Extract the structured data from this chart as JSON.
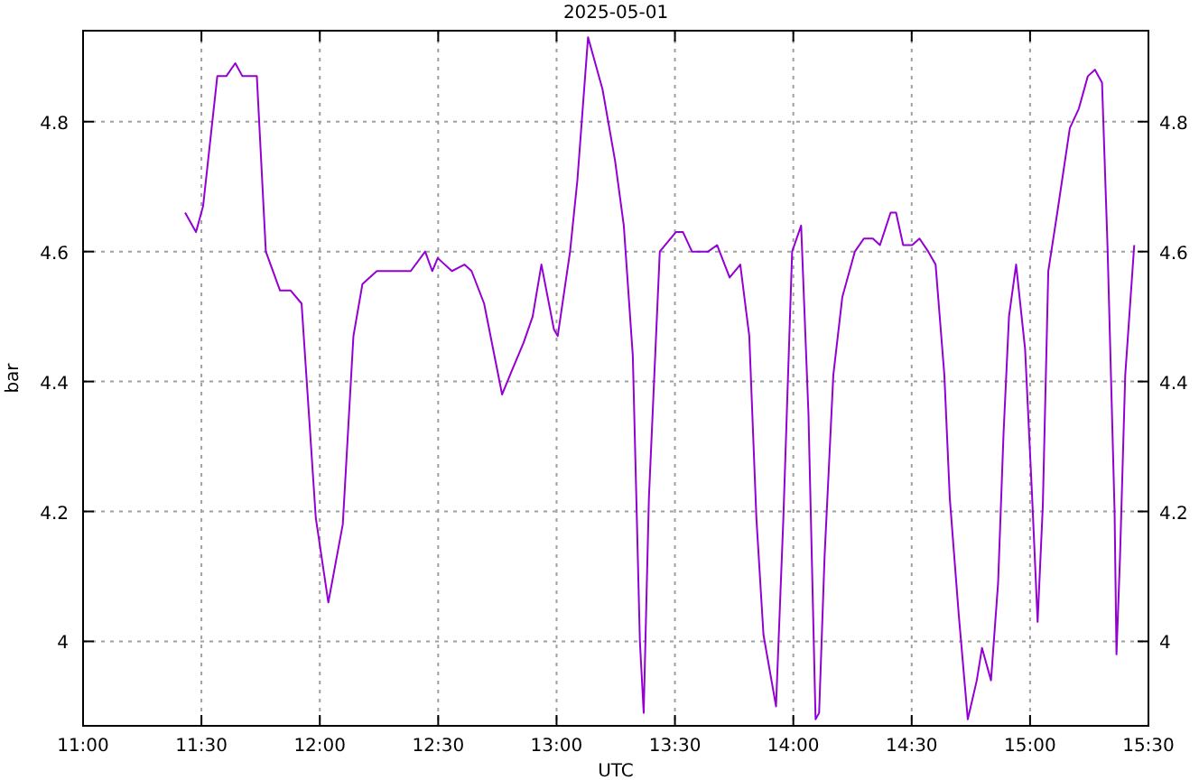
{
  "chart_data": {
    "type": "line",
    "title": "2025-05-01",
    "xlabel": "UTC",
    "ylabel": "bar",
    "xlim": [
      11,
      15.5
    ],
    "xticks": [
      {
        "value": 11,
        "label": "11:00"
      },
      {
        "value": 11.5,
        "label": "11:30"
      },
      {
        "value": 12,
        "label": "12:00"
      },
      {
        "value": 12.5,
        "label": "12:30"
      },
      {
        "value": 13,
        "label": "13:00"
      },
      {
        "value": 13.5,
        "label": "13:30"
      },
      {
        "value": 14,
        "label": "14:00"
      },
      {
        "value": 14.5,
        "label": "14:30"
      },
      {
        "value": 15,
        "label": "15:00"
      },
      {
        "value": 15.5,
        "label": "15:30"
      }
    ],
    "ylim": [
      3.87,
      4.94
    ],
    "yticks": [
      4,
      4.2,
      4.4,
      4.6,
      4.8
    ],
    "y2lim": [
      3.87,
      4.94
    ],
    "y2ticks": [
      4,
      4.2,
      4.4,
      4.6,
      4.8
    ],
    "grid": true,
    "line_style": "solid",
    "marker": "none",
    "x": [
      11.431,
      11.477,
      11.507,
      11.567,
      11.605,
      11.643,
      11.673,
      11.734,
      11.772,
      11.832,
      11.877,
      11.923,
      11.983,
      12.036,
      12.097,
      12.142,
      12.18,
      12.21,
      12.241,
      12.271,
      12.346,
      12.384,
      12.445,
      12.475,
      12.498,
      12.558,
      12.611,
      12.641,
      12.694,
      12.77,
      12.815,
      12.861,
      12.899,
      12.936,
      12.989,
      13.005,
      13.057,
      13.088,
      13.133,
      13.194,
      13.247,
      13.284,
      13.322,
      13.352,
      13.368,
      13.39,
      13.436,
      13.504,
      13.534,
      13.572,
      13.64,
      13.678,
      13.731,
      13.776,
      13.814,
      13.844,
      13.874,
      13.927,
      13.958,
      13.995,
      14.033,
      14.064,
      14.094,
      14.109,
      14.132,
      14.169,
      14.207,
      14.26,
      14.298,
      14.336,
      14.366,
      14.411,
      14.434,
      14.464,
      14.502,
      14.533,
      14.57,
      14.601,
      14.638,
      14.661,
      14.699,
      14.737,
      14.775,
      14.797,
      14.835,
      14.865,
      14.888,
      14.911,
      14.941,
      14.979,
      15.009,
      15.032,
      15.054,
      15.077,
      15.115,
      15.168,
      15.206,
      15.244,
      15.274,
      15.304,
      15.327,
      15.357,
      15.365,
      15.38,
      15.402,
      15.44
    ],
    "series": [
      {
        "color": "#9400d3",
        "values": [
          4.66,
          4.63,
          4.67,
          4.87,
          4.87,
          4.89,
          4.87,
          4.87,
          4.6,
          4.54,
          4.54,
          4.52,
          4.19,
          4.06,
          4.18,
          4.47,
          4.55,
          4.56,
          4.57,
          4.57,
          4.57,
          4.57,
          4.6,
          4.57,
          4.59,
          4.57,
          4.58,
          4.57,
          4.52,
          4.38,
          4.42,
          4.46,
          4.5,
          4.58,
          4.48,
          4.47,
          4.6,
          4.71,
          4.93,
          4.85,
          4.74,
          4.64,
          4.44,
          4.0,
          3.89,
          4.22,
          4.6,
          4.63,
          4.63,
          4.6,
          4.6,
          4.61,
          4.56,
          4.58,
          4.47,
          4.19,
          4.01,
          3.9,
          4.19,
          4.6,
          4.64,
          4.35,
          3.88,
          3.89,
          4.13,
          4.41,
          4.53,
          4.6,
          4.62,
          4.62,
          4.61,
          4.66,
          4.66,
          4.61,
          4.61,
          4.62,
          4.6,
          4.58,
          4.41,
          4.22,
          4.04,
          3.88,
          3.94,
          3.99,
          3.94,
          4.09,
          4.32,
          4.5,
          4.58,
          4.45,
          4.22,
          4.03,
          4.21,
          4.57,
          4.66,
          4.79,
          4.82,
          4.87,
          4.88,
          4.86,
          4.61,
          4.2,
          3.98,
          4.13,
          4.41,
          4.61
        ]
      }
    ]
  }
}
